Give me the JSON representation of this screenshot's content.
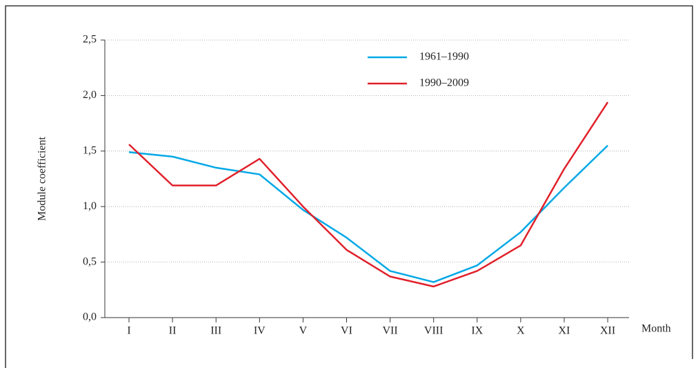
{
  "chart_data": {
    "type": "line",
    "y_label": "Module coefficient",
    "x_label": "Month",
    "categories": [
      "I",
      "II",
      "III",
      "IV",
      "V",
      "VI",
      "VII",
      "VIII",
      "IX",
      "X",
      "XI",
      "XII"
    ],
    "series": [
      {
        "name": "1961–1990",
        "color": "#00a8e6",
        "values": [
          1.49,
          1.45,
          1.35,
          1.29,
          0.97,
          0.72,
          0.42,
          0.32,
          0.47,
          0.77,
          1.17,
          1.55
        ]
      },
      {
        "name": "1990–2009",
        "color": "#e0202a",
        "values": [
          1.56,
          1.19,
          1.19,
          1.43,
          1.0,
          0.61,
          0.37,
          0.28,
          0.42,
          0.65,
          1.34,
          1.94
        ]
      }
    ],
    "ylim": [
      0,
      2.5
    ],
    "yticks": [
      {
        "value": 0,
        "label": "0,0"
      },
      {
        "value": 0.5,
        "label": "0,5"
      },
      {
        "value": 1,
        "label": "1,0"
      },
      {
        "value": 1.5,
        "label": "1,5"
      },
      {
        "value": 2,
        "label": "2,0"
      },
      {
        "value": 2.5,
        "label": "2,5"
      }
    ],
    "grid": true
  }
}
